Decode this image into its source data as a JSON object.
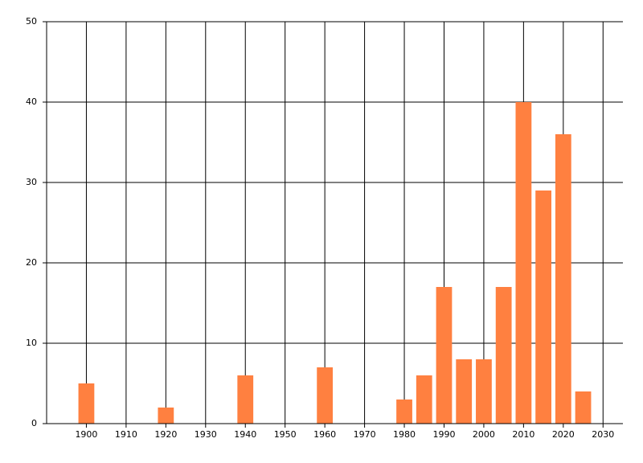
{
  "chart_data": {
    "type": "bar",
    "x": [
      1900,
      1920,
      1940,
      1960,
      1980,
      1985,
      1990,
      1995,
      2000,
      2005,
      2010,
      2015,
      2020,
      2025
    ],
    "values": [
      5,
      2,
      6,
      7,
      3,
      6,
      17,
      8,
      8,
      17,
      40,
      29,
      36,
      4
    ],
    "color": "#ff8040",
    "xlim": [
      1890,
      2035
    ],
    "xticks": [
      1900,
      1910,
      1920,
      1930,
      1940,
      1950,
      1960,
      1970,
      1980,
      1990,
      2000,
      2010,
      2020,
      2030
    ],
    "ylim": [
      0,
      50
    ],
    "yticks": [
      0,
      10,
      20,
      30,
      40,
      50
    ],
    "grid": true
  }
}
